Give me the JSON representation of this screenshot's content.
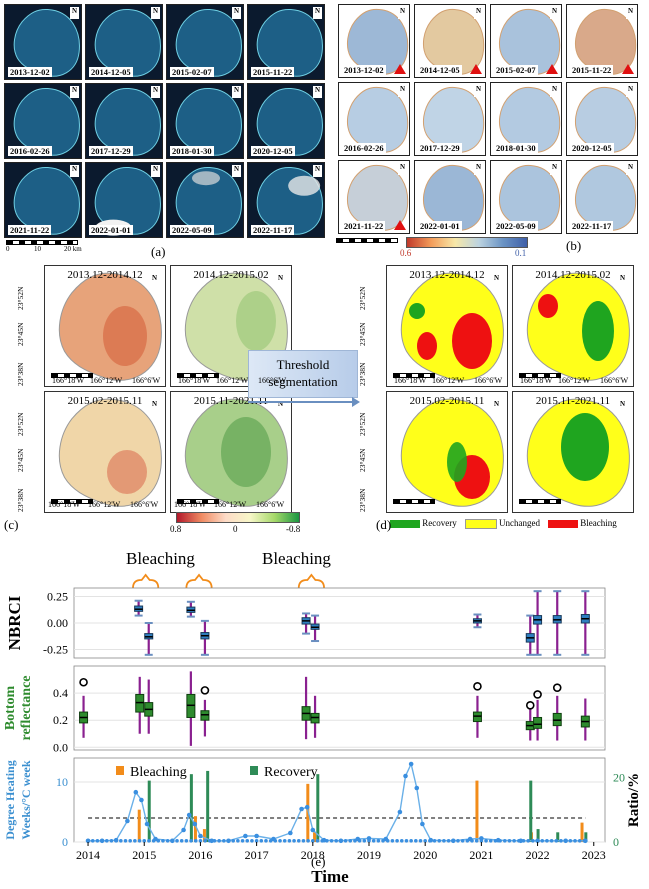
{
  "panel_a": {
    "dates": [
      "2013-12-02",
      "2014-12-05",
      "2015-02-07",
      "2015-11-22",
      "2016-02-26",
      "2017-12-29",
      "2018-01-30",
      "2020-12-05",
      "2021-11-22",
      "2022-01-01",
      "2022-05-09",
      "2022-11-17"
    ],
    "scale_labels": [
      "0",
      "10",
      "20 km"
    ],
    "caption": "(a)"
  },
  "panel_b": {
    "dates": [
      "2013-12-02",
      "2014-12-05",
      "2015-02-07",
      "2015-11-22",
      "2016-02-26",
      "2017-12-29",
      "2018-01-30",
      "2020-12-05",
      "2021-11-22",
      "2022-01-01",
      "2022-05-09",
      "2022-11-17"
    ],
    "bleaching_marked": [
      true,
      true,
      true,
      true,
      false,
      false,
      false,
      false,
      true,
      false,
      false,
      false
    ],
    "colorbar_min": "0.6",
    "colorbar_max": "0.1",
    "caption": "(b)"
  },
  "panel_c": {
    "titles": [
      "2013.12-2014.12",
      "2014.12-2015.02",
      "2015.02-2015.11",
      "2015.11-2021.11"
    ],
    "lat_labels": [
      "23°52N",
      "23°45N",
      "23°38N"
    ],
    "lon_labels": [
      "166°18'W",
      "166°12'W",
      "166°6'W"
    ],
    "scale_labels": [
      "0",
      "5",
      "10",
      "km"
    ],
    "colorbar_labels": [
      "0.8",
      "0",
      "-0.8"
    ],
    "caption": "(c)"
  },
  "threshold_label_1": "Threshold",
  "threshold_label_2": "segmentation",
  "panel_d": {
    "titles": [
      "2013.12-2014.12",
      "2014.12-2015.02",
      "2015.02-2015.11",
      "2015.11-2021.11"
    ],
    "legend": [
      {
        "label": "Recovery",
        "color": "#1fa51f"
      },
      {
        "label": "Unchanged",
        "color": "#ffff1a"
      },
      {
        "label": "Bleaching",
        "color": "#ee1111"
      }
    ],
    "caption": "(d)"
  },
  "panel_e": {
    "caption": "(e)",
    "bleaching_annotations": [
      "Bleaching",
      "Bleaching"
    ],
    "xlabel": "Time",
    "x_ticks": [
      "2014",
      "2015",
      "2016",
      "2017",
      "2018",
      "2019",
      "2020",
      "2021",
      "2022",
      "2023"
    ],
    "nbrci": {
      "ylabel": "NBRCI",
      "ticks": [
        "0.25",
        "0.00",
        "-0.25"
      ],
      "boxes": [
        {
          "x": 2014.9,
          "q1": 0.11,
          "med": 0.13,
          "q3": 0.16,
          "lo": 0.07,
          "hi": 0.21
        },
        {
          "x": 2015.08,
          "q1": -0.15,
          "med": -0.13,
          "q3": -0.1,
          "lo": -0.3,
          "hi": 0.0
        },
        {
          "x": 2015.83,
          "q1": 0.1,
          "med": 0.12,
          "q3": 0.15,
          "lo": 0.06,
          "hi": 0.2
        },
        {
          "x": 2016.08,
          "q1": -0.15,
          "med": -0.12,
          "q3": -0.09,
          "lo": -0.3,
          "hi": 0.02
        },
        {
          "x": 2017.88,
          "q1": -0.01,
          "med": 0.02,
          "q3": 0.05,
          "lo": -0.1,
          "hi": 0.09
        },
        {
          "x": 2018.04,
          "q1": -0.06,
          "med": -0.04,
          "q3": -0.01,
          "lo": -0.17,
          "hi": 0.07
        },
        {
          "x": 2020.93,
          "q1": 0.0,
          "med": 0.02,
          "q3": 0.04,
          "lo": -0.04,
          "hi": 0.08
        },
        {
          "x": 2021.87,
          "q1": -0.18,
          "med": -0.14,
          "q3": -0.1,
          "lo": -0.3,
          "hi": 0.07
        },
        {
          "x": 2022.0,
          "q1": -0.01,
          "med": 0.03,
          "q3": 0.07,
          "lo": -0.3,
          "hi": 0.3
        },
        {
          "x": 2022.35,
          "q1": 0.0,
          "med": 0.03,
          "q3": 0.07,
          "lo": -0.3,
          "hi": 0.3
        },
        {
          "x": 2022.85,
          "q1": 0.0,
          "med": 0.04,
          "q3": 0.08,
          "lo": -0.3,
          "hi": 0.3
        }
      ]
    },
    "bottom": {
      "ylabel_1": "Bottom",
      "ylabel_2": "reflectance",
      "ticks": [
        "0.4",
        "0.2",
        "0.0"
      ],
      "boxes": [
        {
          "x": 2013.92,
          "q1": 0.18,
          "med": 0.22,
          "q3": 0.26,
          "lo": 0.07,
          "hi": 0.38,
          "out": 0.48
        },
        {
          "x": 2014.92,
          "q1": 0.26,
          "med": 0.33,
          "q3": 0.39,
          "lo": 0.1,
          "hi": 0.52
        },
        {
          "x": 2015.08,
          "q1": 0.23,
          "med": 0.28,
          "q3": 0.33,
          "lo": 0.1,
          "hi": 0.5
        },
        {
          "x": 2015.83,
          "q1": 0.22,
          "med": 0.31,
          "q3": 0.39,
          "lo": 0.01,
          "hi": 0.56
        },
        {
          "x": 2016.08,
          "q1": 0.2,
          "med": 0.24,
          "q3": 0.27,
          "lo": 0.08,
          "hi": 0.35,
          "out": 0.42
        },
        {
          "x": 2017.88,
          "q1": 0.2,
          "med": 0.25,
          "q3": 0.3,
          "lo": 0.06,
          "hi": 0.52
        },
        {
          "x": 2018.04,
          "q1": 0.18,
          "med": 0.22,
          "q3": 0.25,
          "lo": 0.07,
          "hi": 0.38
        },
        {
          "x": 2020.93,
          "q1": 0.19,
          "med": 0.23,
          "q3": 0.26,
          "lo": 0.07,
          "hi": 0.38,
          "out": 0.45
        },
        {
          "x": 2021.87,
          "q1": 0.13,
          "med": 0.16,
          "q3": 0.19,
          "lo": 0.05,
          "hi": 0.28,
          "out": 0.31
        },
        {
          "x": 2022.0,
          "q1": 0.14,
          "med": 0.17,
          "q3": 0.22,
          "lo": 0.05,
          "hi": 0.35,
          "out": 0.39
        },
        {
          "x": 2022.35,
          "q1": 0.16,
          "med": 0.2,
          "q3": 0.25,
          "lo": 0.05,
          "hi": 0.38,
          "out": 0.44
        },
        {
          "x": 2022.85,
          "q1": 0.15,
          "med": 0.19,
          "q3": 0.23,
          "lo": 0.05,
          "hi": 0.36
        }
      ]
    },
    "dhw": {
      "ylabel_1": "Degree Heating",
      "ylabel_2": "Weeks/°C week",
      "ylabel_right": "Ratio/%",
      "left_ticks": [
        "10",
        "0"
      ],
      "right_ticks": [
        "20",
        "0"
      ],
      "threshold": 4,
      "legend": [
        {
          "label": "Bleaching",
          "color": "#f28c1a"
        },
        {
          "label": "Recovery",
          "color": "#2e8b57"
        }
      ],
      "line_points": [
        [
          2014.0,
          0.2
        ],
        [
          2014.25,
          0.2
        ],
        [
          2014.5,
          0.3
        ],
        [
          2014.7,
          3.5
        ],
        [
          2014.85,
          8.3
        ],
        [
          2014.95,
          7.0
        ],
        [
          2015.05,
          3.0
        ],
        [
          2015.2,
          0.5
        ],
        [
          2015.5,
          0.2
        ],
        [
          2015.7,
          2.0
        ],
        [
          2015.8,
          4.5
        ],
        [
          2015.9,
          3.0
        ],
        [
          2016.0,
          1.0
        ],
        [
          2016.2,
          0.2
        ],
        [
          2016.5,
          0.2
        ],
        [
          2016.8,
          1.0
        ],
        [
          2017.0,
          1.0
        ],
        [
          2017.3,
          0.5
        ],
        [
          2017.6,
          1.5
        ],
        [
          2017.8,
          5.5
        ],
        [
          2017.9,
          5.8
        ],
        [
          2018.0,
          2.0
        ],
        [
          2018.2,
          0.3
        ],
        [
          2018.5,
          0.2
        ],
        [
          2018.8,
          0.5
        ],
        [
          2019.0,
          0.6
        ],
        [
          2019.3,
          0.5
        ],
        [
          2019.55,
          5.0
        ],
        [
          2019.65,
          11.0
        ],
        [
          2019.75,
          13.0
        ],
        [
          2019.85,
          9.0
        ],
        [
          2019.95,
          3.0
        ],
        [
          2020.1,
          0.3
        ],
        [
          2020.5,
          0.2
        ],
        [
          2020.8,
          0.5
        ],
        [
          2021.0,
          0.6
        ],
        [
          2021.3,
          0.3
        ],
        [
          2021.7,
          0.2
        ],
        [
          2022.0,
          0.2
        ],
        [
          2022.5,
          0.2
        ],
        [
          2022.85,
          0.2
        ]
      ],
      "bleaching_bars": [
        {
          "x": 2014.92,
          "v": 10
        },
        {
          "x": 2015.92,
          "v": 8
        },
        {
          "x": 2016.08,
          "v": 4
        },
        {
          "x": 2017.92,
          "v": 18
        },
        {
          "x": 2018.04,
          "v": 3
        },
        {
          "x": 2020.93,
          "v": 19
        },
        {
          "x": 2021.9,
          "v": 3
        },
        {
          "x": 2022.8,
          "v": 6
        }
      ],
      "recovery_bars": [
        {
          "x": 2015.08,
          "v": 19
        },
        {
          "x": 2015.83,
          "v": 21
        },
        {
          "x": 2016.12,
          "v": 22
        },
        {
          "x": 2018.08,
          "v": 21
        },
        {
          "x": 2021.87,
          "v": 19
        },
        {
          "x": 2022.0,
          "v": 4
        },
        {
          "x": 2022.35,
          "v": 3
        },
        {
          "x": 2022.85,
          "v": 3
        }
      ]
    }
  }
}
